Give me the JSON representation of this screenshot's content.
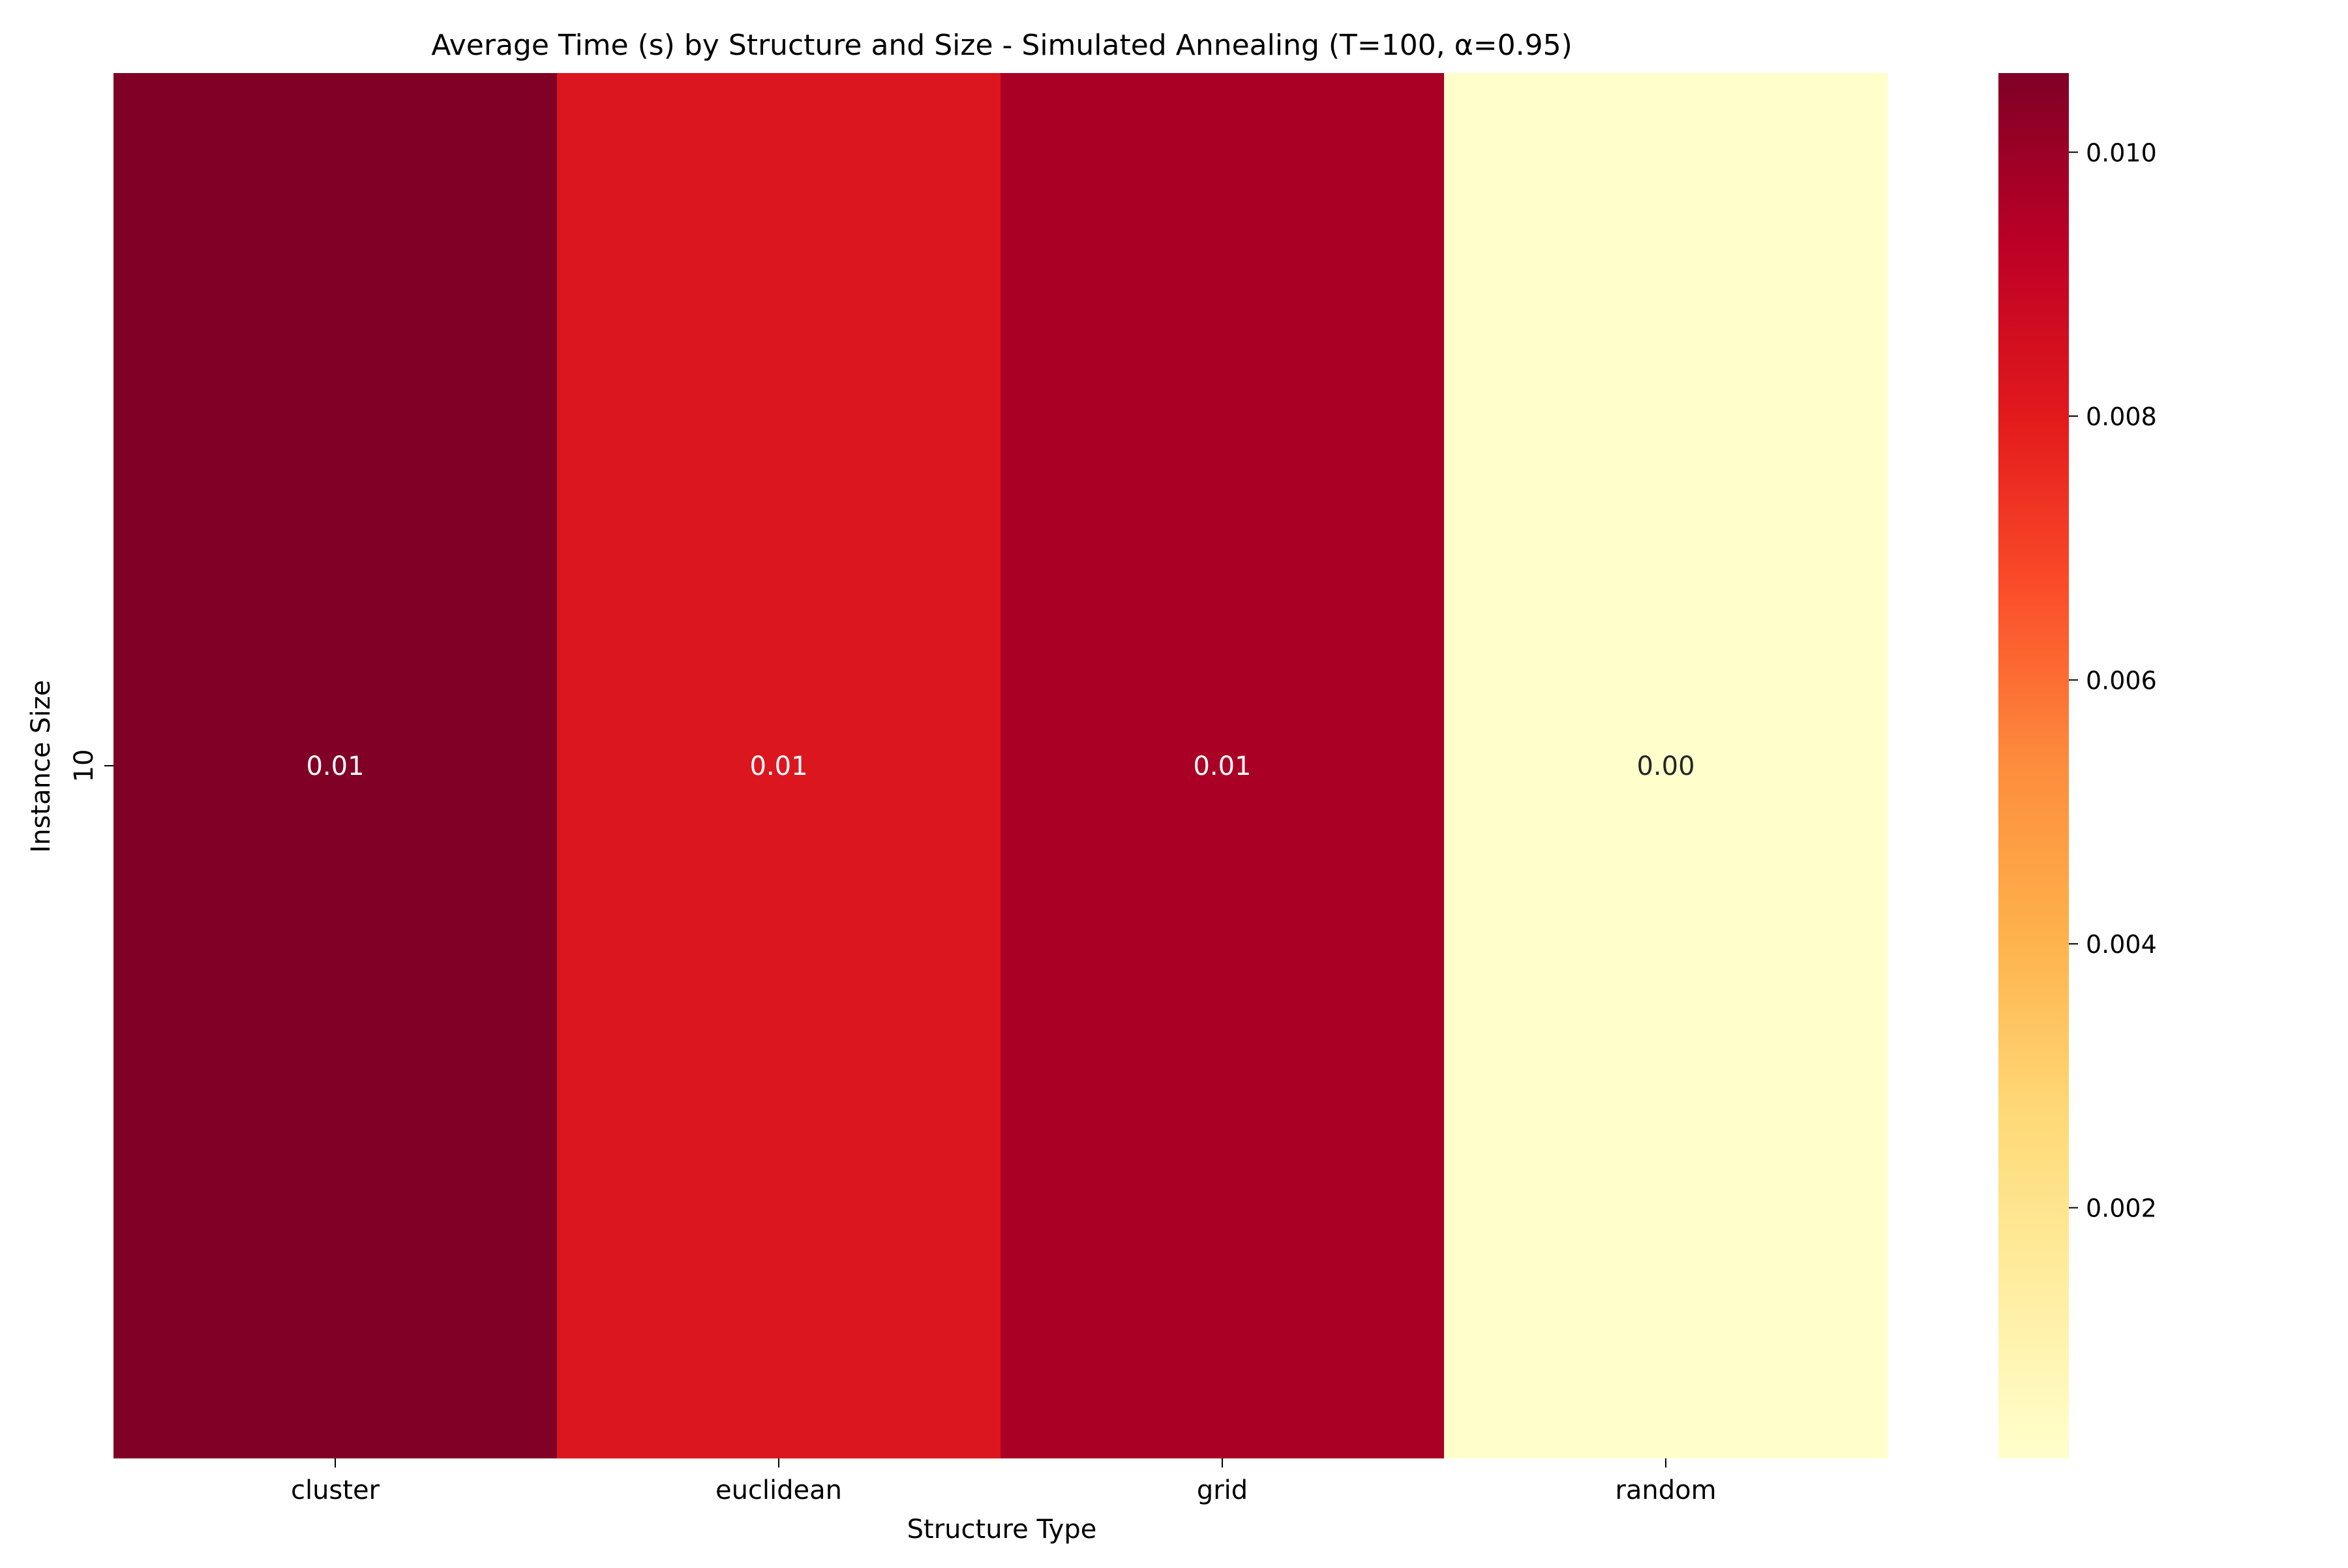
{
  "chart_data": {
    "type": "heatmap",
    "title": "Average Time (s) by Structure and Size - Simulated Annealing (T=100, α=0.95)",
    "xlabel": "Structure Type",
    "ylabel": "Instance Size",
    "x_categories": [
      "cluster",
      "euclidean",
      "grid",
      "random"
    ],
    "y_categories": [
      "10"
    ],
    "values": [
      [
        0.0106,
        0.0082,
        0.0097,
        0.0001
      ]
    ],
    "annotations": [
      [
        "0.01",
        "0.01",
        "0.01",
        "0.00"
      ]
    ],
    "colormap": "YlOrRd",
    "colorbar": {
      "range": [
        0.0001,
        0.0106
      ],
      "ticks": [
        0.002,
        0.004,
        0.006,
        0.008,
        0.01
      ],
      "tick_labels": [
        "0.002",
        "0.004",
        "0.006",
        "0.008",
        "0.010"
      ]
    },
    "grid": false,
    "legend": "colorbar at right"
  }
}
